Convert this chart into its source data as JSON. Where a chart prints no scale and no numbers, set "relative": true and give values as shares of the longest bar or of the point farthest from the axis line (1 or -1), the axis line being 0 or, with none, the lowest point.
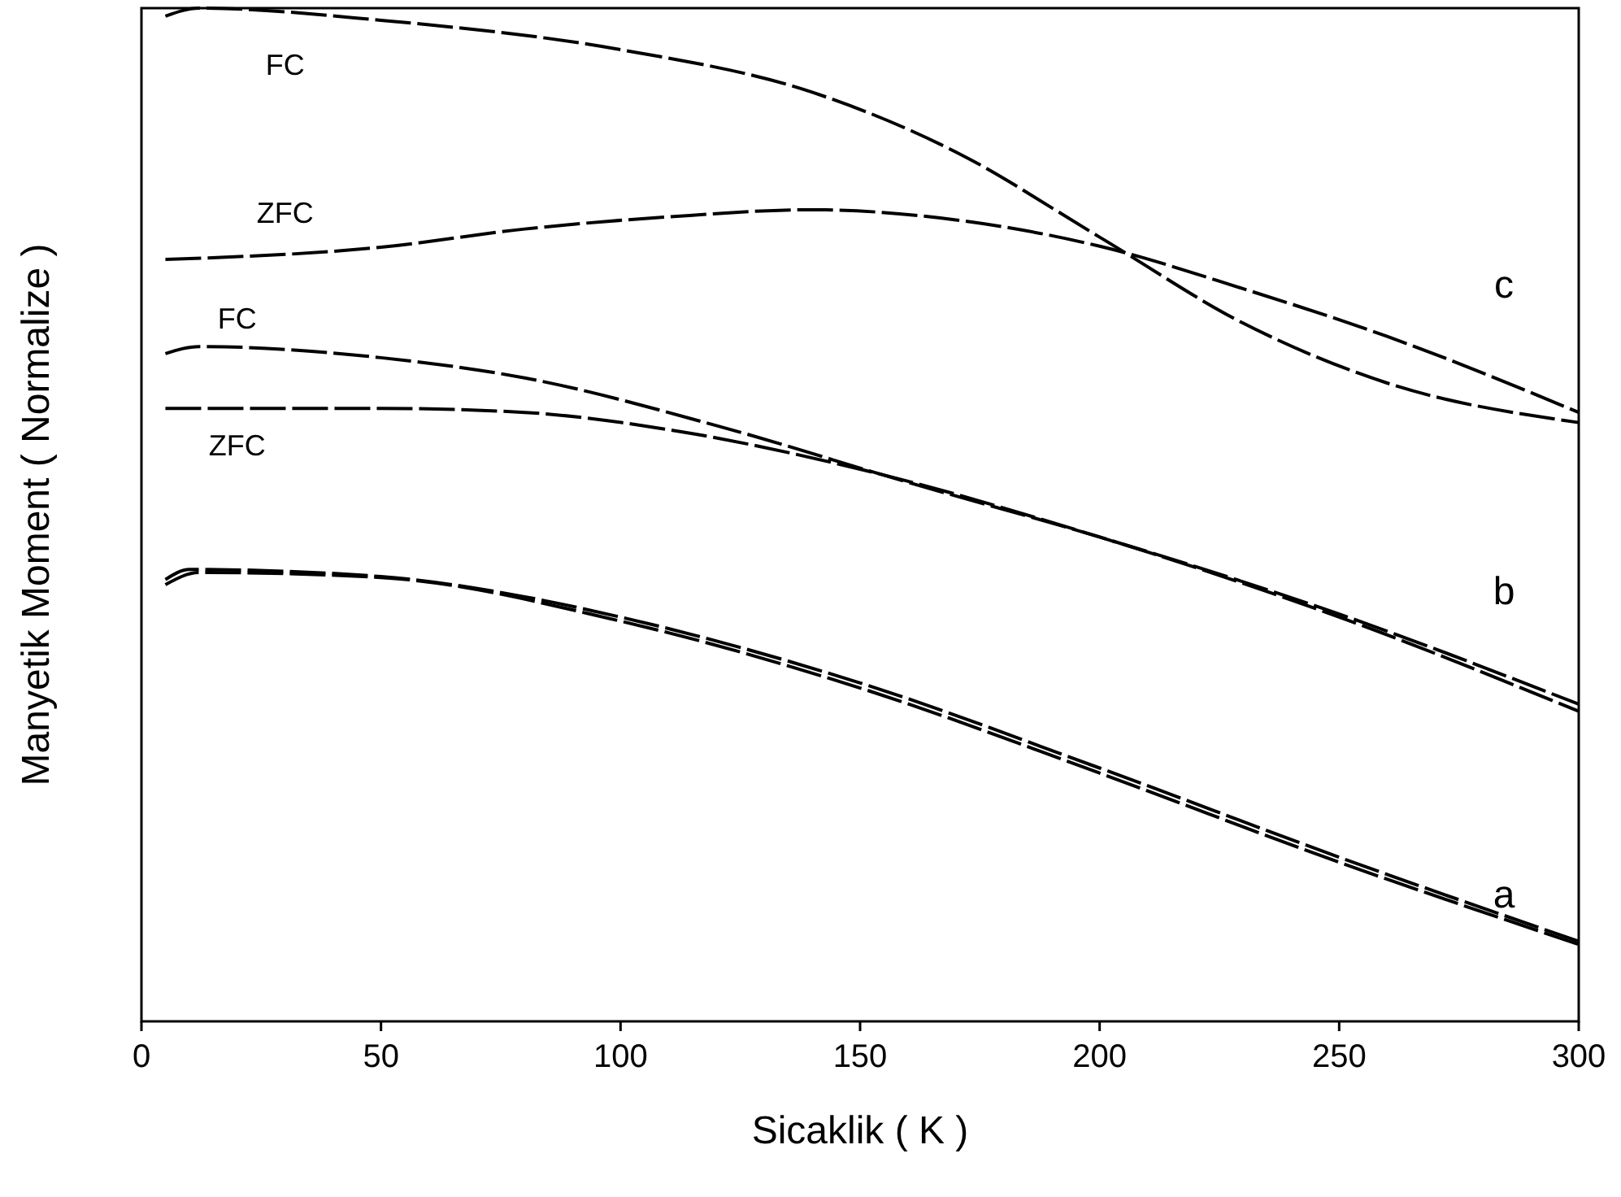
{
  "chart_data": {
    "type": "line",
    "xlabel": "Sicaklik ( K )",
    "ylabel": "Manyetik Moment ( Normalize )",
    "relative": true,
    "xlim": [
      0,
      300
    ],
    "xticks": [
      0,
      50,
      100,
      150,
      200,
      250,
      300
    ],
    "line_style": "dashed",
    "tick_labels": "x",
    "series": [
      {
        "name": "FC",
        "color": "#000000",
        "x": [
          5,
          12,
          50,
          100,
          140,
          170,
          200,
          230,
          260,
          300
        ],
        "values": [
          0.992,
          1,
          0.988,
          0.959,
          0.917,
          0.858,
          0.774,
          0.689,
          0.63,
          0.591
        ]
      },
      {
        "name": "ZFC",
        "color": "#000000",
        "x": [
          5,
          50,
          80,
          110,
          140,
          170,
          200,
          230,
          260,
          300
        ],
        "values": [
          0.752,
          0.764,
          0.782,
          0.794,
          0.801,
          0.791,
          0.765,
          0.723,
          0.676,
          0.601
        ]
      },
      {
        "name": "FC",
        "color": "#000000",
        "x": [
          5,
          12,
          50,
          80,
          120,
          160,
          200,
          250,
          300
        ],
        "values": [
          0.659,
          0.666,
          0.655,
          0.635,
          0.588,
          0.532,
          0.478,
          0.402,
          0.313
        ]
      },
      {
        "name": "ZFC",
        "color": "#000000",
        "x": [
          5,
          50,
          80,
          110,
          150,
          200,
          250,
          300
        ],
        "values": [
          0.605,
          0.605,
          0.601,
          0.584,
          0.545,
          0.478,
          0.399,
          0.306
        ]
      },
      {
        "color": "#000000",
        "x": [
          5,
          10,
          50,
          80,
          100,
          150,
          200,
          250,
          300
        ],
        "values": [
          0.436,
          0.446,
          0.439,
          0.419,
          0.399,
          0.334,
          0.25,
          0.162,
          0.079
        ]
      },
      {
        "color": "#000000",
        "x": [
          5,
          12,
          50,
          100,
          150,
          200,
          250,
          300
        ],
        "values": [
          0.431,
          0.443,
          0.438,
          0.395,
          0.329,
          0.245,
          0.157,
          0.076
        ]
      }
    ],
    "annotations": [
      "c",
      "b",
      "a"
    ]
  }
}
